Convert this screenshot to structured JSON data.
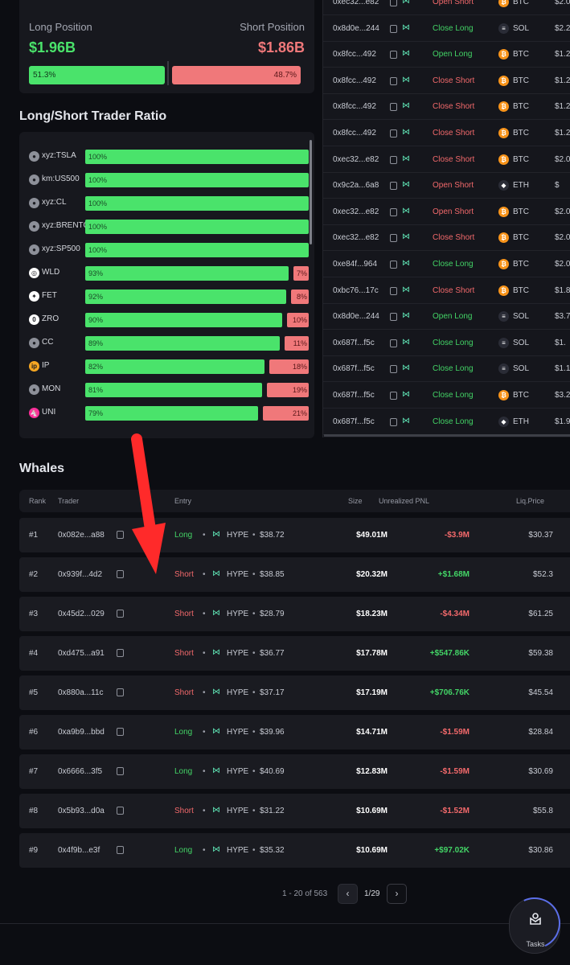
{
  "position": {
    "long_label": "Long Position",
    "short_label": "Short Position",
    "long_value": "$1.96B",
    "short_value": "$1.86B",
    "long_pct": "51.3%",
    "short_pct": "48.7%",
    "long_color": "#4ae36b",
    "short_color": "#f0787a"
  },
  "ratio": {
    "title": "Long/Short Trader Ratio",
    "items": [
      {
        "name": "xyz:TSLA",
        "icon": "user-icon",
        "long": "100%",
        "short": ""
      },
      {
        "name": "km:US500",
        "icon": "user-icon",
        "long": "100%",
        "short": ""
      },
      {
        "name": "xyz:CL",
        "icon": "user-icon",
        "long": "100%",
        "short": ""
      },
      {
        "name": "xyz:BRENTOIL",
        "icon": "user-icon",
        "long": "100%",
        "short": ""
      },
      {
        "name": "xyz:SP500",
        "icon": "user-icon",
        "long": "100%",
        "short": ""
      },
      {
        "name": "WLD",
        "icon": "worldcoin-icon",
        "long": "93%",
        "short": "7%"
      },
      {
        "name": "FET",
        "icon": "fetch-icon",
        "long": "92%",
        "short": "8%"
      },
      {
        "name": "ZRO",
        "icon": "layerzero-icon",
        "long": "90%",
        "short": "10%"
      },
      {
        "name": "CC",
        "icon": "user-icon",
        "long": "89%",
        "short": "11%"
      },
      {
        "name": "IP",
        "icon": "story-icon",
        "long": "82%",
        "short": "18%"
      },
      {
        "name": "MON",
        "icon": "user-icon",
        "long": "81%",
        "short": "19%"
      },
      {
        "name": "UNI",
        "icon": "uniswap-icon",
        "long": "79%",
        "short": "21%"
      }
    ]
  },
  "trades": [
    {
      "addr": "0xec32...e82",
      "action": "Open Short",
      "coin": "BTC",
      "value": "$2.0"
    },
    {
      "addr": "0x8d0e...244",
      "action": "Close Long",
      "coin": "SOL",
      "value": "$2.2"
    },
    {
      "addr": "0x8fcc...492",
      "action": "Open Long",
      "coin": "BTC",
      "value": "$1.2"
    },
    {
      "addr": "0x8fcc...492",
      "action": "Close Short",
      "coin": "BTC",
      "value": "$1.2"
    },
    {
      "addr": "0x8fcc...492",
      "action": "Close Short",
      "coin": "BTC",
      "value": "$1.2"
    },
    {
      "addr": "0x8fcc...492",
      "action": "Close Short",
      "coin": "BTC",
      "value": "$1.2"
    },
    {
      "addr": "0xec32...e82",
      "action": "Close Short",
      "coin": "BTC",
      "value": "$2.0"
    },
    {
      "addr": "0x9c2a...6a8",
      "action": "Open Short",
      "coin": "ETH",
      "value": "$"
    },
    {
      "addr": "0xec32...e82",
      "action": "Open Short",
      "coin": "BTC",
      "value": "$2.0"
    },
    {
      "addr": "0xec32...e82",
      "action": "Close Short",
      "coin": "BTC",
      "value": "$2.0"
    },
    {
      "addr": "0xe84f...964",
      "action": "Close Long",
      "coin": "BTC",
      "value": "$2.0"
    },
    {
      "addr": "0xbc76...17c",
      "action": "Close Short",
      "coin": "BTC",
      "value": "$1.8"
    },
    {
      "addr": "0x8d0e...244",
      "action": "Open Long",
      "coin": "SOL",
      "value": "$3.7"
    },
    {
      "addr": "0x687f...f5c",
      "action": "Close Long",
      "coin": "SOL",
      "value": "$1."
    },
    {
      "addr": "0x687f...f5c",
      "action": "Close Long",
      "coin": "SOL",
      "value": "$1.1"
    },
    {
      "addr": "0x687f...f5c",
      "action": "Close Long",
      "coin": "BTC",
      "value": "$3.2"
    },
    {
      "addr": "0x687f...f5c",
      "action": "Close Long",
      "coin": "ETH",
      "value": "$1.9"
    }
  ],
  "whales": {
    "title": "Whales",
    "headers": {
      "rank": "Rank",
      "trader": "Trader",
      "entry": "Entry",
      "size": "Size",
      "pnl": "Unrealized PNL",
      "liq": "Liq.Price"
    },
    "rows": [
      {
        "rank": "#1",
        "addr": "0x082e...a88",
        "side": "Long",
        "coin": "HYPE",
        "entry": "$38.72",
        "size": "$49.01M",
        "pnl": "-$3.9M",
        "liq": "$30.37"
      },
      {
        "rank": "#2",
        "addr": "0x939f...4d2",
        "side": "Short",
        "coin": "HYPE",
        "entry": "$38.85",
        "size": "$20.32M",
        "pnl": "+$1.68M",
        "liq": "$52.3"
      },
      {
        "rank": "#3",
        "addr": "0x45d2...029",
        "side": "Short",
        "coin": "HYPE",
        "entry": "$28.79",
        "size": "$18.23M",
        "pnl": "-$4.34M",
        "liq": "$61.25"
      },
      {
        "rank": "#4",
        "addr": "0xd475...a91",
        "side": "Short",
        "coin": "HYPE",
        "entry": "$36.77",
        "size": "$17.78M",
        "pnl": "+$547.86K",
        "liq": "$59.38"
      },
      {
        "rank": "#5",
        "addr": "0x880a...11c",
        "side": "Short",
        "coin": "HYPE",
        "entry": "$37.17",
        "size": "$17.19M",
        "pnl": "+$706.76K",
        "liq": "$45.54"
      },
      {
        "rank": "#6",
        "addr": "0xa9b9...bbd",
        "side": "Long",
        "coin": "HYPE",
        "entry": "$39.96",
        "size": "$14.71M",
        "pnl": "-$1.59M",
        "liq": "$28.84"
      },
      {
        "rank": "#7",
        "addr": "0x6666...3f5",
        "side": "Long",
        "coin": "HYPE",
        "entry": "$40.69",
        "size": "$12.83M",
        "pnl": "-$1.59M",
        "liq": "$30.69"
      },
      {
        "rank": "#8",
        "addr": "0x5b93...d0a",
        "side": "Short",
        "coin": "HYPE",
        "entry": "$31.22",
        "size": "$10.69M",
        "pnl": "-$1.52M",
        "liq": "$55.8"
      },
      {
        "rank": "#9",
        "addr": "0x4f9b...e3f",
        "side": "Long",
        "coin": "HYPE",
        "entry": "$35.32",
        "size": "$10.69M",
        "pnl": "+$97.02K",
        "liq": "$30.86"
      }
    ]
  },
  "pagination": {
    "range": "1 - 20 of 563",
    "current": "1/29",
    "prev": "‹",
    "next": "›"
  },
  "tasks": {
    "label": "Tasks",
    "icon": "tasks-icon"
  }
}
